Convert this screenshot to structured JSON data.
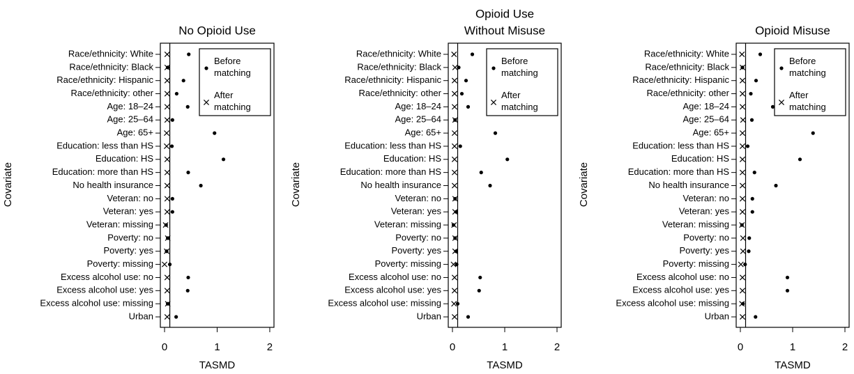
{
  "chart_data": [
    {
      "type": "dotplot",
      "title": [
        "No Opioid Use"
      ],
      "xlabel": "TASMD",
      "ylabel": "Covariate",
      "categories": [
        "Race/ethnicity: White",
        "Race/ethnicity: Black",
        "Race/ethnicity: Hispanic",
        "Race/ethnicity: other",
        "Age: 18–24",
        "Age: 25–64",
        "Age: 65+",
        "Education: less than HS",
        "Education: HS",
        "Education: more than HS",
        "No health insurance",
        "Veteran: no",
        "Veteran: yes",
        "Veteran: missing",
        "Poverty: no",
        "Poverty: yes",
        "Poverty: missing",
        "Excess alcohol use: no",
        "Excess alcohol use: yes",
        "Excess alcohol use: missing",
        "Urban"
      ],
      "series": [
        {
          "name": "Before matching",
          "color": "#000000",
          "marker": "dot",
          "values": [
            0.46,
            0.06,
            0.36,
            0.23,
            0.44,
            0.15,
            0.95,
            0.14,
            1.12,
            0.45,
            0.69,
            0.15,
            0.15,
            0.03,
            0.06,
            0.04,
            0.1,
            0.45,
            0.44,
            0.06,
            0.22
          ]
        },
        {
          "name": "After matching",
          "color": "#000000",
          "marker": "x",
          "values": [
            0.05,
            0.05,
            0.05,
            0.05,
            0.05,
            0.05,
            0.04,
            0.04,
            0.05,
            0.05,
            0.05,
            0.05,
            0.05,
            0.02,
            0.06,
            0.04,
            0.0,
            0.05,
            0.05,
            0.06,
            0.05
          ]
        }
      ],
      "xlim": [
        -0.08,
        2.08
      ],
      "xticks": [
        0,
        1,
        2
      ],
      "reference_line": 0.1,
      "legend": "upper right"
    },
    {
      "type": "dotplot",
      "title": [
        "Opioid Use",
        "Without Misuse"
      ],
      "xlabel": "TASMD",
      "ylabel": "Covariate",
      "categories": [
        "Race/ethnicity: White",
        "Race/ethnicity: Black",
        "Race/ethnicity: Hispanic",
        "Race/ethnicity: other",
        "Age: 18–24",
        "Age: 25–64",
        "Age: 65+",
        "Education: less than HS",
        "Education: HS",
        "Education: more than HS",
        "No health insurance",
        "Veteran: no",
        "Veteran: yes",
        "Veteran: missing",
        "Poverty: no",
        "Poverty: yes",
        "Poverty: missing",
        "Excess alcohol use: no",
        "Excess alcohol use: yes",
        "Excess alcohol use: missing",
        "Urban"
      ],
      "series": [
        {
          "name": "Before matching",
          "color": "#000000",
          "marker": "dot",
          "values": [
            0.38,
            0.12,
            0.26,
            0.18,
            0.3,
            0.05,
            0.82,
            0.15,
            1.05,
            0.55,
            0.72,
            0.05,
            0.07,
            0.02,
            0.05,
            0.07,
            0.08,
            0.53,
            0.51,
            0.1,
            0.3
          ]
        },
        {
          "name": "After matching",
          "color": "#000000",
          "marker": "x",
          "values": [
            0.03,
            0.05,
            0.04,
            0.04,
            0.04,
            0.05,
            0.04,
            0.04,
            0.04,
            0.04,
            0.04,
            0.05,
            0.05,
            0.03,
            0.05,
            0.05,
            0.02,
            0.04,
            0.04,
            0.03,
            0.04
          ]
        }
      ],
      "xlim": [
        -0.08,
        2.08
      ],
      "xticks": [
        0,
        1,
        2
      ],
      "reference_line": 0.1,
      "legend": "upper right"
    },
    {
      "type": "dotplot",
      "title": [
        "Opioid Misuse"
      ],
      "xlabel": "TASMD",
      "ylabel": "Covariate",
      "categories": [
        "Race/ethnicity: White",
        "Race/ethnicity: Black",
        "Race/ethnicity: Hispanic",
        "Race/ethnicity: other",
        "Age: 18–24",
        "Age: 25–64",
        "Age: 65+",
        "Education: less than HS",
        "Education: HS",
        "Education: more than HS",
        "No health insurance",
        "Veteran: no",
        "Veteran: yes",
        "Veteran: missing",
        "Poverty: no",
        "Poverty: yes",
        "Poverty: missing",
        "Excess alcohol use: no",
        "Excess alcohol use: yes",
        "Excess alcohol use: missing",
        "Urban"
      ],
      "series": [
        {
          "name": "Before matching",
          "color": "#000000",
          "marker": "dot",
          "values": [
            0.38,
            0.04,
            0.3,
            0.2,
            0.62,
            0.22,
            1.39,
            0.14,
            1.14,
            0.27,
            0.68,
            0.23,
            0.23,
            0.03,
            0.17,
            0.16,
            0.09,
            0.9,
            0.9,
            0.05,
            0.29
          ]
        },
        {
          "name": "After matching",
          "color": "#000000",
          "marker": "x",
          "values": [
            0.03,
            0.04,
            0.04,
            0.04,
            0.04,
            0.05,
            0.04,
            0.04,
            0.04,
            0.04,
            0.04,
            0.04,
            0.04,
            0.03,
            0.05,
            0.05,
            0.01,
            0.04,
            0.04,
            0.03,
            0.04
          ]
        }
      ],
      "xlim": [
        -0.08,
        2.08
      ],
      "xticks": [
        0,
        1,
        2
      ],
      "reference_line": 0.1,
      "legend": "upper right"
    }
  ]
}
